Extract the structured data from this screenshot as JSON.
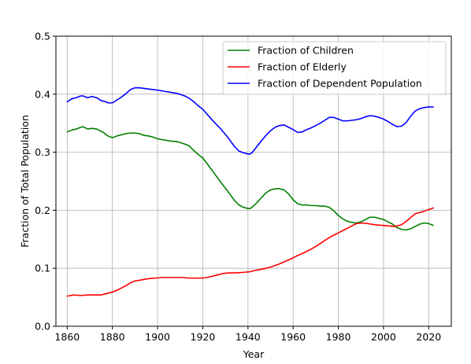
{
  "chart_data": {
    "type": "line",
    "title": "",
    "xlabel": "Year",
    "ylabel": "Fraction of Total Population",
    "xlim": [
      1855,
      2030
    ],
    "ylim": [
      0,
      0.5
    ],
    "x_ticks": [
      1860,
      1880,
      1900,
      1920,
      1940,
      1960,
      1980,
      2000,
      2020
    ],
    "x_tick_labels": [
      "1860",
      "1880",
      "1900",
      "1920",
      "1940",
      "1960",
      "1980",
      "2000",
      "2020"
    ],
    "y_ticks": [
      0.0,
      0.1,
      0.2,
      0.3,
      0.4,
      0.5
    ],
    "y_tick_labels": [
      "0.0",
      "0.1",
      "0.2",
      "0.3",
      "0.4",
      "0.5"
    ],
    "grid": true,
    "legend_position": "top-right",
    "series": [
      {
        "name": "Fraction of Children",
        "color": "#008000",
        "x": [
          1860,
          1862,
          1864,
          1866,
          1867,
          1869,
          1871,
          1873,
          1876,
          1878,
          1880,
          1882,
          1884,
          1886,
          1888,
          1890,
          1892,
          1894,
          1896,
          1898,
          1900,
          1903,
          1906,
          1909,
          1912,
          1914,
          1916,
          1918,
          1920,
          1922,
          1925,
          1928,
          1931,
          1934,
          1936,
          1938,
          1940,
          1941,
          1942,
          1944,
          1946,
          1948,
          1950,
          1952,
          1954,
          1956,
          1958,
          1960,
          1962,
          1964,
          1966,
          1968,
          1970,
          1972,
          1974,
          1976,
          1978,
          1980,
          1982,
          1984,
          1986,
          1988,
          1990,
          1992,
          1994,
          1996,
          1998,
          2000,
          2002,
          2004,
          2006,
          2008,
          2010,
          2012,
          2014,
          2016,
          2018,
          2020,
          2022
        ],
        "y": [
          0.335,
          0.338,
          0.34,
          0.343,
          0.344,
          0.34,
          0.341,
          0.34,
          0.334,
          0.328,
          0.325,
          0.328,
          0.33,
          0.332,
          0.333,
          0.333,
          0.332,
          0.329,
          0.328,
          0.326,
          0.323,
          0.321,
          0.319,
          0.318,
          0.314,
          0.311,
          0.303,
          0.296,
          0.29,
          0.28,
          0.264,
          0.248,
          0.233,
          0.217,
          0.209,
          0.205,
          0.203,
          0.203,
          0.206,
          0.213,
          0.222,
          0.23,
          0.235,
          0.237,
          0.237,
          0.235,
          0.228,
          0.218,
          0.211,
          0.209,
          0.209,
          0.208,
          0.208,
          0.207,
          0.207,
          0.205,
          0.199,
          0.191,
          0.185,
          0.181,
          0.179,
          0.178,
          0.18,
          0.184,
          0.188,
          0.188,
          0.186,
          0.184,
          0.18,
          0.176,
          0.17,
          0.167,
          0.166,
          0.168,
          0.172,
          0.176,
          0.178,
          0.177,
          0.174
        ]
      },
      {
        "name": "Fraction of Elderly",
        "color": "#ff0000",
        "x": [
          1860,
          1863,
          1866,
          1869,
          1872,
          1875,
          1878,
          1880,
          1882,
          1884,
          1886,
          1888,
          1890,
          1893,
          1896,
          1899,
          1902,
          1905,
          1908,
          1911,
          1914,
          1917,
          1920,
          1923,
          1926,
          1929,
          1932,
          1935,
          1938,
          1941,
          1944,
          1947,
          1950,
          1953,
          1956,
          1959,
          1962,
          1965,
          1968,
          1971,
          1974,
          1977,
          1980,
          1983,
          1986,
          1988,
          1990,
          1993,
          1996,
          1999,
          2002,
          2005,
          2008,
          2011,
          2014,
          2017,
          2020,
          2022
        ],
        "y": [
          0.052,
          0.054,
          0.053,
          0.054,
          0.054,
          0.054,
          0.057,
          0.059,
          0.062,
          0.066,
          0.07,
          0.075,
          0.078,
          0.08,
          0.082,
          0.083,
          0.084,
          0.084,
          0.084,
          0.084,
          0.083,
          0.083,
          0.083,
          0.085,
          0.088,
          0.091,
          0.092,
          0.092,
          0.093,
          0.094,
          0.097,
          0.099,
          0.102,
          0.106,
          0.111,
          0.116,
          0.122,
          0.127,
          0.133,
          0.14,
          0.148,
          0.155,
          0.161,
          0.167,
          0.173,
          0.177,
          0.178,
          0.177,
          0.175,
          0.174,
          0.173,
          0.172,
          0.175,
          0.184,
          0.194,
          0.197,
          0.201,
          0.204
        ]
      },
      {
        "name": "Fraction of Dependent Population",
        "color": "#0000ff",
        "x": [
          1860,
          1862,
          1864,
          1866,
          1867,
          1869,
          1871,
          1873,
          1875,
          1877,
          1878,
          1880,
          1882,
          1884,
          1886,
          1888,
          1890,
          1892,
          1894,
          1896,
          1898,
          1900,
          1903,
          1906,
          1909,
          1912,
          1914,
          1916,
          1918,
          1920,
          1922,
          1925,
          1928,
          1931,
          1934,
          1936,
          1938,
          1940,
          1941,
          1942,
          1944,
          1946,
          1948,
          1950,
          1952,
          1954,
          1956,
          1958,
          1960,
          1962,
          1964,
          1966,
          1968,
          1970,
          1972,
          1974,
          1976,
          1978,
          1980,
          1982,
          1984,
          1986,
          1988,
          1990,
          1992,
          1994,
          1996,
          1998,
          2000,
          2002,
          2004,
          2006,
          2008,
          2010,
          2012,
          2014,
          2016,
          2018,
          2020,
          2022
        ],
        "y": [
          0.387,
          0.392,
          0.394,
          0.397,
          0.397,
          0.394,
          0.396,
          0.394,
          0.389,
          0.387,
          0.385,
          0.385,
          0.39,
          0.395,
          0.401,
          0.408,
          0.411,
          0.411,
          0.41,
          0.409,
          0.408,
          0.407,
          0.405,
          0.403,
          0.401,
          0.397,
          0.393,
          0.387,
          0.38,
          0.374,
          0.365,
          0.352,
          0.34,
          0.326,
          0.31,
          0.302,
          0.299,
          0.297,
          0.297,
          0.3,
          0.31,
          0.32,
          0.329,
          0.337,
          0.343,
          0.346,
          0.347,
          0.343,
          0.339,
          0.334,
          0.335,
          0.339,
          0.342,
          0.346,
          0.35,
          0.355,
          0.36,
          0.36,
          0.357,
          0.354,
          0.354,
          0.355,
          0.356,
          0.358,
          0.361,
          0.363,
          0.362,
          0.36,
          0.357,
          0.353,
          0.348,
          0.344,
          0.345,
          0.351,
          0.362,
          0.371,
          0.375,
          0.377,
          0.378,
          0.378
        ]
      }
    ]
  }
}
